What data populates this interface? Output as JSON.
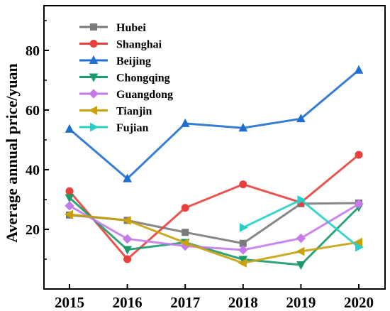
{
  "chart_data": {
    "type": "line",
    "title": "",
    "xlabel": "",
    "ylabel": "Average annual price/yuan",
    "categories": [
      "2015",
      "2016",
      "2017",
      "2018",
      "2019",
      "2020"
    ],
    "ylim": [
      0,
      95
    ],
    "yticks": [
      20,
      40,
      60,
      80
    ],
    "grid": false,
    "legend_position": "top-left",
    "series": [
      {
        "name": "Hubei",
        "values": [
          24.8,
          23.0,
          19.0,
          15.3,
          28.6,
          28.8
        ],
        "color": "#7a7a7a",
        "marker": "square"
      },
      {
        "name": "Shanghai",
        "values": [
          32.8,
          10.0,
          27.2,
          35.1,
          29.0,
          45.0
        ],
        "color": "#e8413c",
        "marker": "circle"
      },
      {
        "name": "Beijing",
        "values": [
          53.6,
          37.0,
          55.5,
          54.0,
          57.1,
          73.4
        ],
        "color": "#1f6fd0",
        "marker": "triangle-up"
      },
      {
        "name": "Chongqing",
        "values": [
          30.6,
          13.2,
          15.6,
          9.9,
          8.1,
          27.5
        ],
        "color": "#1a9a6a",
        "marker": "triangle-down"
      },
      {
        "name": "Guangdong",
        "values": [
          27.9,
          16.8,
          14.4,
          13.1,
          17.0,
          28.5
        ],
        "color": "#c57bea",
        "marker": "diamond"
      },
      {
        "name": "Tianjin",
        "values": [
          25.0,
          23.0,
          15.5,
          8.7,
          12.6,
          15.7
        ],
        "color": "#c9a10a",
        "marker": "triangle-left"
      },
      {
        "name": "Fujian",
        "values": [
          null,
          null,
          null,
          20.6,
          29.9,
          14.0
        ],
        "color": "#27cfc8",
        "marker": "triangle-right"
      }
    ]
  }
}
